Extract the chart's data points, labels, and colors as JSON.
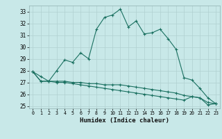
{
  "title": "",
  "xlabel": "Humidex (Indice chaleur)",
  "ylabel": "",
  "background_color": "#c8e8e8",
  "grid_color": "#b0d0d0",
  "line_color": "#1a7060",
  "xlim": [
    -0.5,
    23.5
  ],
  "ylim": [
    24.8,
    33.5
  ],
  "yticks": [
    25,
    26,
    27,
    28,
    29,
    30,
    31,
    32,
    33
  ],
  "xticks": [
    0,
    1,
    2,
    3,
    4,
    5,
    6,
    7,
    8,
    9,
    10,
    11,
    12,
    13,
    14,
    15,
    16,
    17,
    18,
    19,
    20,
    21,
    22,
    23
  ],
  "line1_x": [
    0,
    1,
    2,
    3,
    4,
    5,
    6,
    7,
    8,
    9,
    10,
    11,
    12,
    13,
    14,
    15,
    16,
    17,
    18,
    19,
    20,
    21,
    22,
    23
  ],
  "line1_y": [
    27.9,
    27.5,
    27.1,
    28.0,
    28.9,
    28.7,
    29.5,
    29.0,
    31.5,
    32.5,
    32.7,
    33.2,
    31.7,
    32.2,
    31.1,
    31.2,
    31.5,
    30.7,
    29.8,
    27.4,
    27.2,
    26.5,
    25.7,
    25.2
  ],
  "line2_x": [
    0,
    1,
    2,
    3,
    4,
    5,
    6,
    7,
    8,
    9,
    10,
    11,
    12,
    13,
    14,
    15,
    16,
    17,
    18,
    19,
    20,
    21,
    22,
    23
  ],
  "line2_y": [
    27.9,
    27.1,
    27.1,
    27.1,
    27.1,
    27.0,
    27.0,
    26.9,
    26.9,
    26.8,
    26.8,
    26.8,
    26.7,
    26.6,
    26.5,
    26.4,
    26.3,
    26.2,
    26.1,
    25.9,
    25.8,
    25.7,
    25.1,
    25.2
  ],
  "line3_x": [
    0,
    1,
    2,
    3,
    4,
    5,
    6,
    7,
    8,
    9,
    10,
    11,
    12,
    13,
    14,
    15,
    16,
    17,
    18,
    19,
    20,
    21,
    22,
    23
  ],
  "line3_y": [
    27.9,
    27.1,
    27.1,
    27.0,
    27.0,
    26.9,
    26.8,
    26.7,
    26.6,
    26.5,
    26.4,
    26.3,
    26.2,
    26.1,
    26.0,
    25.9,
    25.8,
    25.7,
    25.6,
    25.5,
    25.8,
    25.7,
    25.3,
    25.2
  ]
}
